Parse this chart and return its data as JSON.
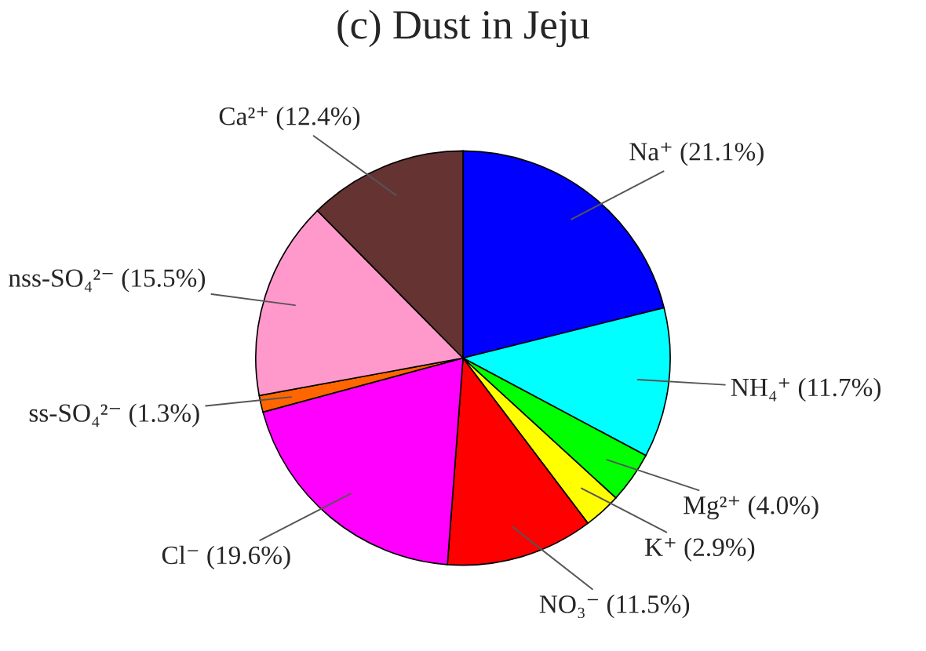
{
  "chart_data": {
    "type": "pie",
    "title": "(c) Dust in Jeju",
    "categories": [
      "Na⁺ (21.1%)",
      "NH₄⁺ (11.7%)",
      "Mg²⁺ (4.0%)",
      "K⁺ (2.9%)",
      "NO₃⁻ (11.5%)",
      "Cl⁻ (19.6%)",
      "ss-SO₄²⁻ (1.3%)",
      "nss-SO₄²⁻ (15.5%)",
      "Ca²⁺ (12.4%)"
    ],
    "values": [
      21.1,
      11.7,
      4.0,
      2.9,
      11.5,
      19.6,
      1.3,
      15.5,
      12.4
    ],
    "colors": [
      "#0000ff",
      "#00ffff",
      "#00ff00",
      "#ffff00",
      "#ff0000",
      "#ff00ff",
      "#ff6600",
      "#ff99cc",
      "#663333"
    ]
  }
}
